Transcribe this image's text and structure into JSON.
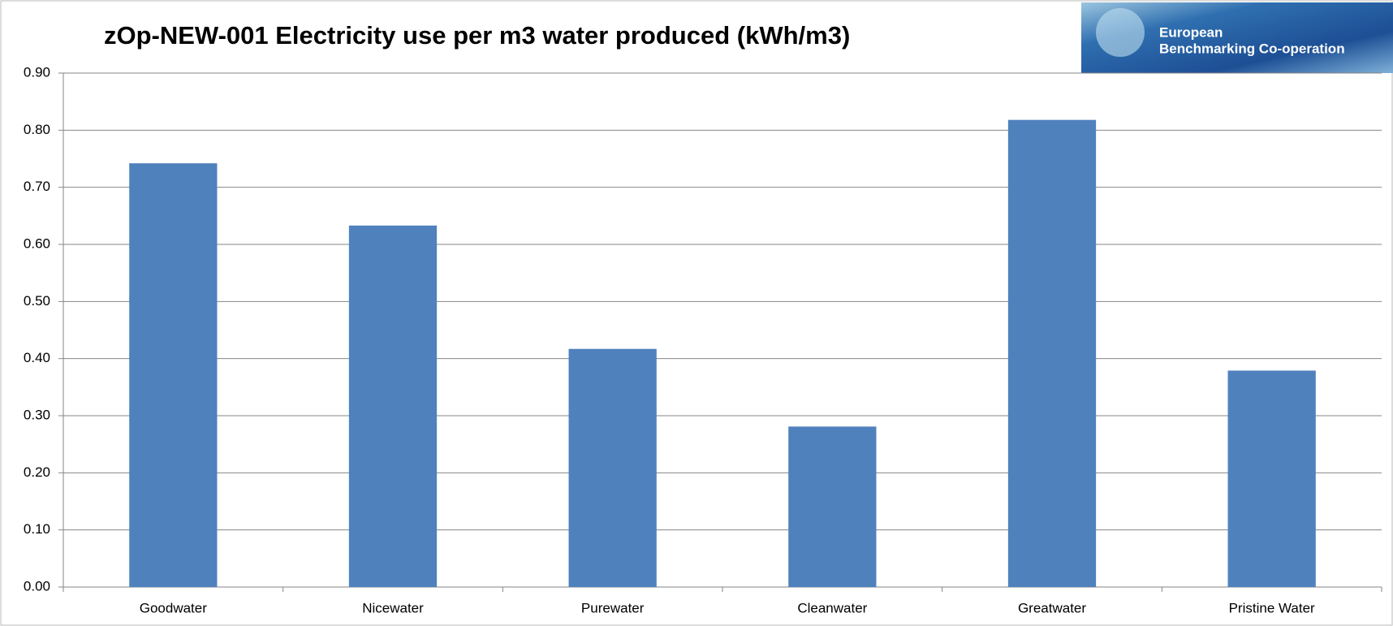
{
  "chart_data": {
    "type": "bar",
    "title": "zOp-NEW-001 Electricity use per m3 water produced (kWh/m3)",
    "categories": [
      "Goodwater",
      "Nicewater",
      "Purewater",
      "Cleanwater",
      "Greatwater",
      "Pristine Water"
    ],
    "values": [
      0.742,
      0.633,
      0.417,
      0.281,
      0.818,
      0.379
    ],
    "color": "#4f81bd",
    "ylim": [
      0,
      0.9
    ],
    "yticks": [
      {
        "value": 0,
        "label": "0.00"
      },
      {
        "value": 0.1,
        "label": "0.10"
      },
      {
        "value": 0.2,
        "label": "0.20"
      },
      {
        "value": 0.3,
        "label": "0.30"
      },
      {
        "value": 0.4,
        "label": "0.40"
      },
      {
        "value": 0.5,
        "label": "0.50"
      },
      {
        "value": 0.6,
        "label": "0.60"
      },
      {
        "value": 0.7,
        "label": "0.70"
      },
      {
        "value": 0.8,
        "label": "0.80"
      },
      {
        "value": 0.9,
        "label": "0.90"
      }
    ],
    "grid": true
  },
  "logo": {
    "lines": [
      "European",
      "Benchmarking Co-operation"
    ]
  }
}
